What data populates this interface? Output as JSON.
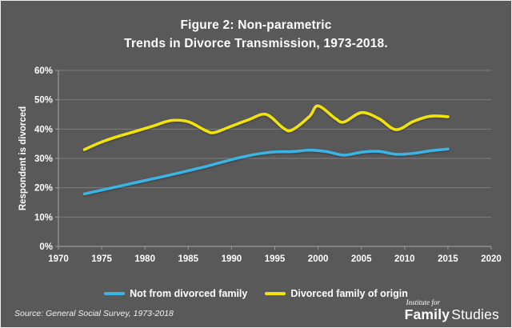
{
  "title": {
    "line1": "Figure 2: Non-parametric",
    "line2": "Trends in Divorce Transmission, 1973-2018."
  },
  "source_note": "Source: General Social Survey, 1973-2018",
  "logo": {
    "line1": "Institute for",
    "word1": "Family",
    "word2": "Studies"
  },
  "colors": {
    "background": "#595959",
    "border": "#EFEFEF",
    "text": "#FFFFFF",
    "gridline": "#7E7E7E",
    "axis": "#9A9A9A",
    "series_blue": "#3BB3E3",
    "series_yellow": "#F2E40A"
  },
  "chart_data": {
    "type": "line",
    "title": "Figure 2: Non-parametric Trends in Divorce Transmission, 1973-2018.",
    "xlabel": "",
    "ylabel": "Respondent is divorced",
    "xlim": [
      1970,
      2020
    ],
    "ylim": [
      0,
      60
    ],
    "x_ticks": [
      1970,
      1975,
      1980,
      1985,
      1990,
      1995,
      2000,
      2005,
      2010,
      2015,
      2020
    ],
    "y_ticks": [
      0,
      10,
      20,
      30,
      40,
      50,
      60
    ],
    "y_tick_suffix": "%",
    "grid": "horizontal",
    "legend_position": "bottom",
    "series": [
      {
        "name": "Not from divorced family",
        "color": "#3BB3E3",
        "points": [
          [
            1973,
            17.9
          ],
          [
            1975,
            19.2
          ],
          [
            1977,
            20.5
          ],
          [
            1979,
            21.8
          ],
          [
            1981,
            23.1
          ],
          [
            1983,
            24.4
          ],
          [
            1985,
            25.8
          ],
          [
            1987,
            27.2
          ],
          [
            1989,
            28.8
          ],
          [
            1991,
            30.3
          ],
          [
            1993,
            31.5
          ],
          [
            1995,
            32.2
          ],
          [
            1997,
            32.3
          ],
          [
            1999,
            32.8
          ],
          [
            2001,
            32.3
          ],
          [
            2003,
            31.1
          ],
          [
            2005,
            32.1
          ],
          [
            2007,
            32.4
          ],
          [
            2009,
            31.4
          ],
          [
            2011,
            31.7
          ],
          [
            2013,
            32.6
          ],
          [
            2015,
            33.2
          ]
        ]
      },
      {
        "name": "Divorced family of origin",
        "color": "#F2E40A",
        "points": [
          [
            1973,
            33.0
          ],
          [
            1975,
            35.6
          ],
          [
            1977,
            37.6
          ],
          [
            1979,
            39.3
          ],
          [
            1981,
            41.1
          ],
          [
            1983,
            42.9
          ],
          [
            1985,
            42.5
          ],
          [
            1987,
            39.5
          ],
          [
            1988,
            38.8
          ],
          [
            1990,
            41.0
          ],
          [
            1992,
            43.2
          ],
          [
            1994,
            45.0
          ],
          [
            1996,
            40.3
          ],
          [
            1997,
            39.7
          ],
          [
            1999,
            44.3
          ],
          [
            2000,
            47.9
          ],
          [
            2002,
            43.6
          ],
          [
            2003,
            42.4
          ],
          [
            2005,
            45.6
          ],
          [
            2007,
            43.6
          ],
          [
            2009,
            39.8
          ],
          [
            2011,
            42.6
          ],
          [
            2013,
            44.4
          ],
          [
            2015,
            44.2
          ]
        ]
      }
    ]
  }
}
